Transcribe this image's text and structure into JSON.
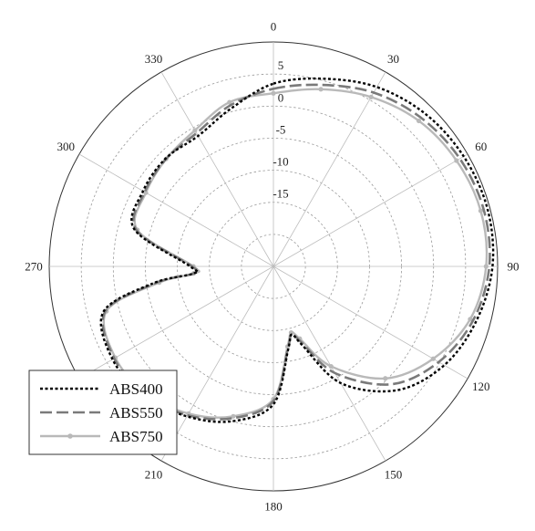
{
  "chart_data": {
    "type": "polar-line",
    "title": "",
    "angle_direction": "clockwise",
    "zero_location": "top",
    "angular_ticks": [
      0,
      30,
      60,
      90,
      120,
      150,
      180,
      210,
      240,
      270,
      300,
      330
    ],
    "angular_tick_labels": [
      "0",
      "30",
      "60",
      "90",
      "120",
      "150",
      "180",
      "210",
      "",
      "270",
      "300",
      "330"
    ],
    "r_range": [
      -25,
      10
    ],
    "r_ticks": [
      -15,
      -10,
      -5,
      0,
      5
    ],
    "r_tick_labels": [
      "-15",
      "-10",
      "-5",
      "0",
      "5"
    ],
    "grid": true,
    "legend_position": "bottom-left",
    "angles_deg": [
      0,
      15,
      30,
      45,
      60,
      75,
      90,
      105,
      120,
      135,
      150,
      160,
      165,
      170,
      180,
      195,
      210,
      225,
      240,
      255,
      262,
      265,
      270,
      285,
      300,
      315,
      330,
      345
    ],
    "series": [
      {
        "name": "ABS400",
        "style": "dotted",
        "color": "#000000",
        "values": [
          3.5,
          5.3,
          7.3,
          8.6,
          9.3,
          9.6,
          9.2,
          7.8,
          5.8,
          2.3,
          -4.0,
          -12.0,
          -14.0,
          -11.8,
          -3.5,
          0.0,
          2.0,
          3.5,
          4.0,
          2.5,
          -6.0,
          -12.5,
          -12.0,
          -2.5,
          -1.5,
          -1.2,
          -1.5,
          0.5
        ]
      },
      {
        "name": "ABS550",
        "style": "dashed",
        "color": "#7a7a7a",
        "values": [
          2.7,
          4.3,
          6.3,
          7.7,
          8.6,
          9.0,
          8.7,
          7.3,
          4.8,
          1.0,
          -5.8,
          -12.5,
          -14.0,
          -12.0,
          -4.0,
          -0.5,
          1.8,
          3.3,
          3.7,
          2.2,
          -6.5,
          -12.5,
          -12.3,
          -2.8,
          -1.8,
          -1.3,
          -1.0,
          1.0
        ]
      },
      {
        "name": "ABS750",
        "style": "solid-marker",
        "color": "#b9b9b9",
        "values": [
          2.0,
          3.6,
          5.5,
          7.1,
          8.0,
          8.5,
          8.2,
          6.8,
          3.8,
          -0.3,
          -7.0,
          -13.0,
          -14.3,
          -12.3,
          -4.3,
          -0.8,
          1.5,
          3.0,
          3.5,
          2.0,
          -7.0,
          -12.5,
          -12.5,
          -3.0,
          -2.0,
          -1.3,
          -0.5,
          1.5
        ]
      }
    ]
  }
}
